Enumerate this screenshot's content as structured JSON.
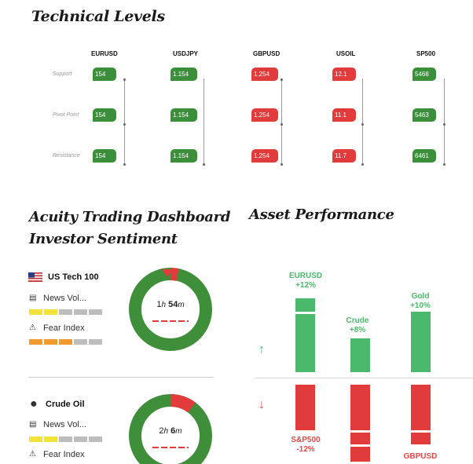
{
  "technical_levels": {
    "title": "Technical Levels",
    "columns": [
      "EURUSD",
      "USDJPY",
      "GBPUSD",
      "USOIL",
      "SP500"
    ],
    "rows": [
      "Support",
      "Pivot Point",
      "Resistance"
    ],
    "values": [
      [
        "154",
        "1.154",
        "1.254",
        "12.1",
        "5468"
      ],
      [
        "154",
        "1.154",
        "1.254",
        "11.1",
        "5463"
      ],
      [
        "154",
        "1.154",
        "1.254",
        "11.7",
        "6461"
      ]
    ],
    "column_colors": [
      "green",
      "green",
      "red",
      "red",
      "green"
    ]
  },
  "sentiment": {
    "title_line1": "Acuity Trading Dashboard",
    "title_line2": "Investor Sentiment",
    "items": [
      {
        "name": "US Tech 100",
        "icon": "us-flag-icon",
        "news_label": "News Vol...",
        "fear_label": "Fear Index",
        "news_level": 2,
        "fear_level": 3,
        "time_h": "1",
        "time_m": "54",
        "h_unit": "h",
        "m_unit": "m",
        "gauge_red_fraction": 0.03
      },
      {
        "name": "Crude Oil",
        "icon": "oil-drop-icon",
        "news_label": "News Vol...",
        "fear_label": "Fear Index",
        "news_level": 2,
        "time_h": "2",
        "time_m": "6",
        "h_unit": "h",
        "m_unit": "m",
        "gauge_red_fraction": 0.1
      }
    ]
  },
  "asset_performance": {
    "title": "Asset Performance",
    "up_assets": [
      {
        "name": "EURUSD",
        "change": "+12%"
      },
      {
        "name": "Crude",
        "change": "+8%"
      },
      {
        "name": "Gold",
        "change": "+10%"
      }
    ],
    "down_assets": [
      {
        "name": "S&P500",
        "change": "-12%"
      },
      {
        "name": "GBPUSD",
        "change": ""
      }
    ],
    "colors": {
      "up": "#4bb96b",
      "down": "#e23b3b"
    }
  }
}
